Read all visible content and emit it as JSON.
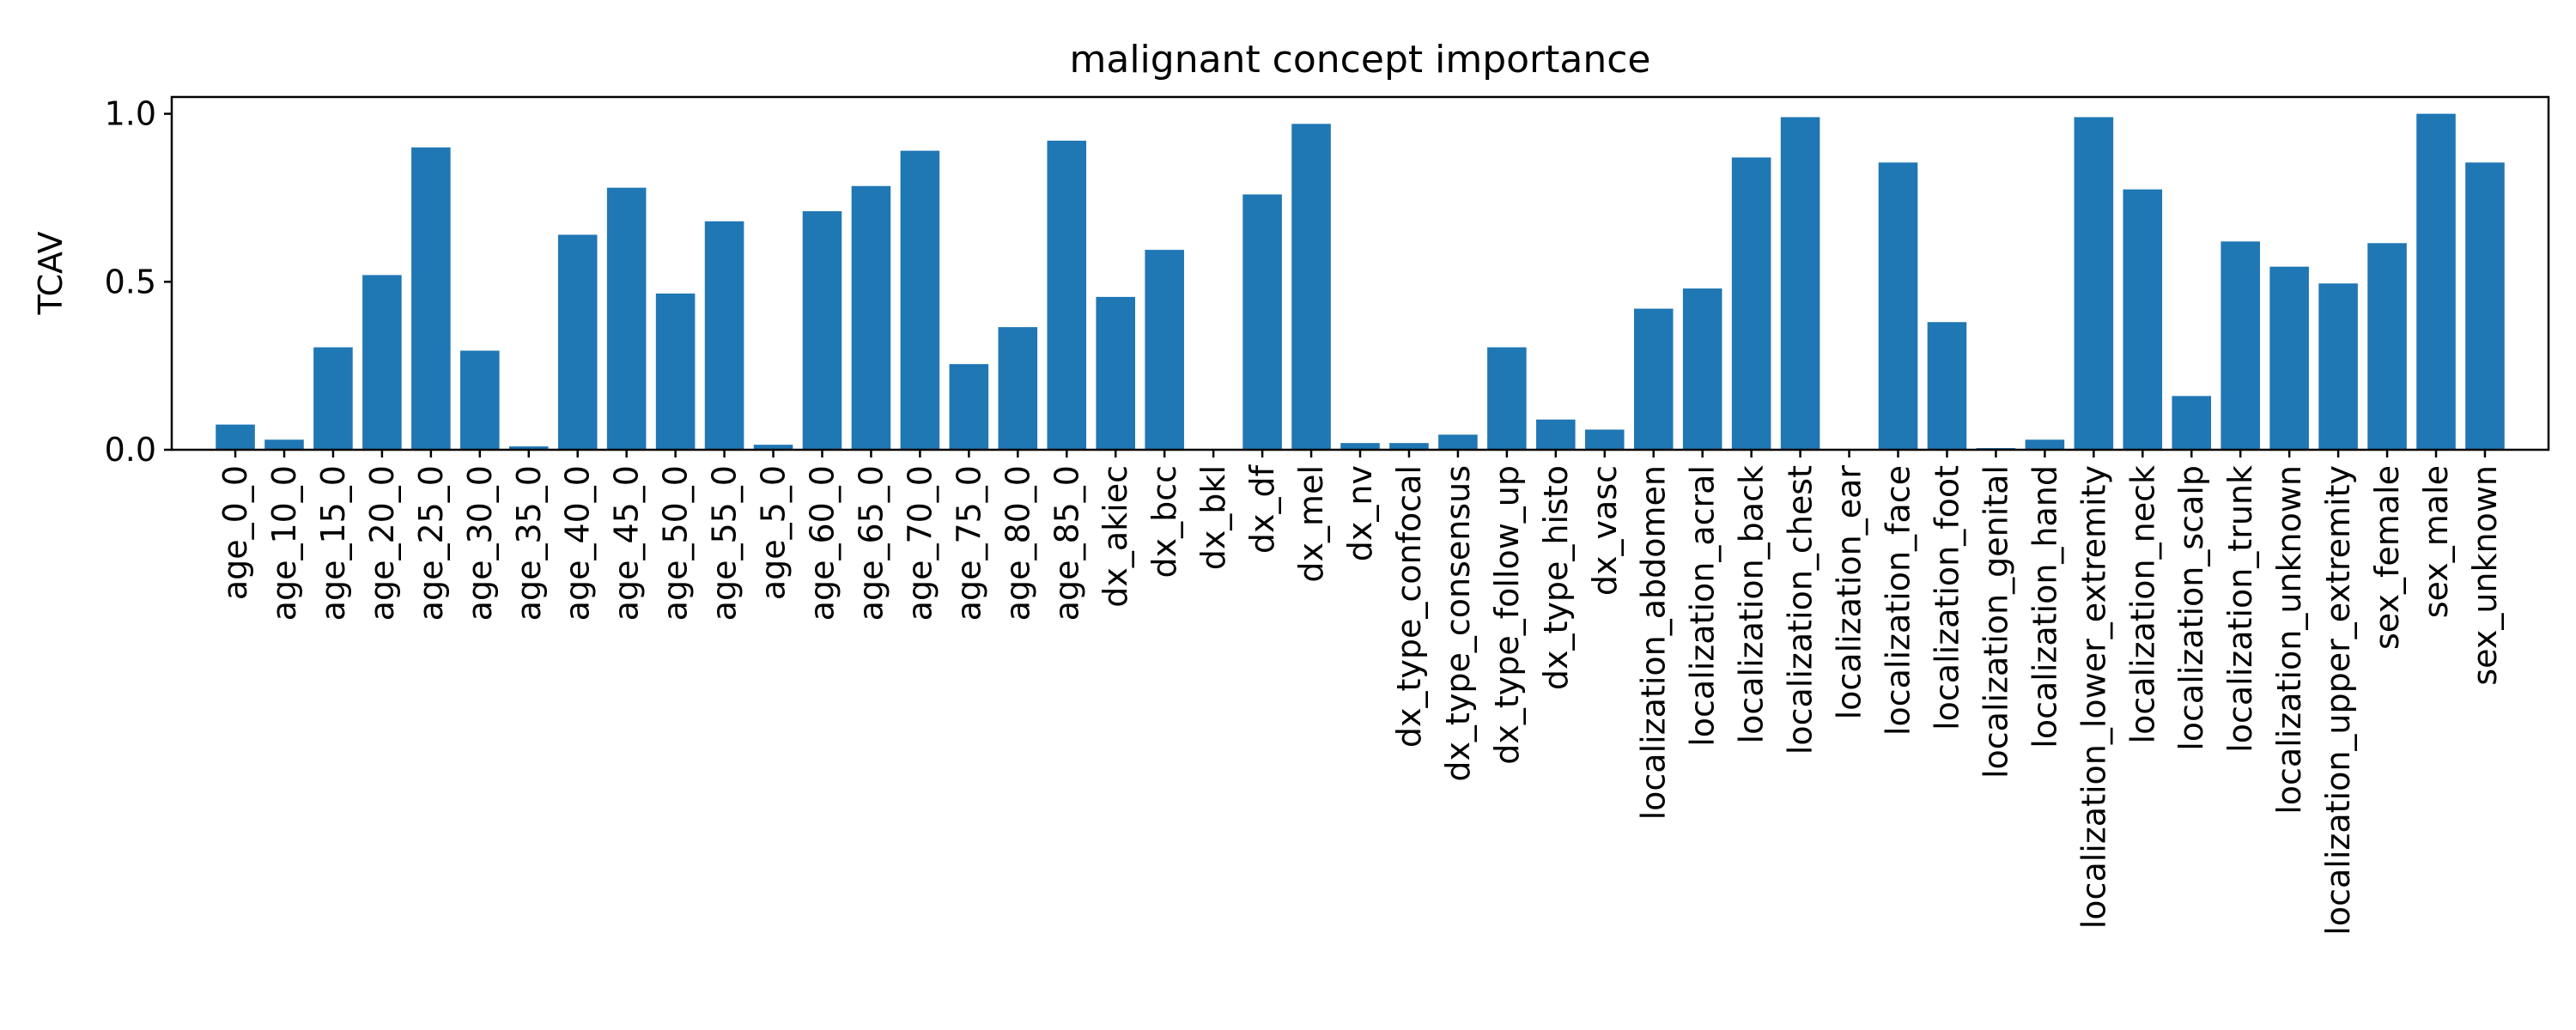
{
  "chart_data": {
    "type": "bar",
    "title": "malignant concept importance",
    "xlabel": "",
    "ylabel": "TCAV",
    "ylim": [
      0,
      1.05
    ],
    "yticks": [
      0.0,
      0.5,
      1.0
    ],
    "ytick_labels": [
      "0.0",
      "0.5",
      "1.0"
    ],
    "grid": false,
    "bar_color": "#1f77b4",
    "categories": [
      "age_0_0",
      "age_10_0",
      "age_15_0",
      "age_20_0",
      "age_25_0",
      "age_30_0",
      "age_35_0",
      "age_40_0",
      "age_45_0",
      "age_50_0",
      "age_55_0",
      "age_5_0",
      "age_60_0",
      "age_65_0",
      "age_70_0",
      "age_75_0",
      "age_80_0",
      "age_85_0",
      "dx_akiec",
      "dx_bcc",
      "dx_bkl",
      "dx_df",
      "dx_mel",
      "dx_nv",
      "dx_type_confocal",
      "dx_type_consensus",
      "dx_type_follow_up",
      "dx_type_histo",
      "dx_vasc",
      "localization_abdomen",
      "localization_acral",
      "localization_back",
      "localization_chest",
      "localization_ear",
      "localization_face",
      "localization_foot",
      "localization_genital",
      "localization_hand",
      "localization_lower_extremity",
      "localization_neck",
      "localization_scalp",
      "localization_trunk",
      "localization_unknown",
      "localization_upper_extremity",
      "sex_female",
      "sex_male",
      "sex_unknown"
    ],
    "values": [
      0.075,
      0.03,
      0.305,
      0.52,
      0.9,
      0.295,
      0.01,
      0.64,
      0.78,
      0.465,
      0.68,
      0.015,
      0.71,
      0.785,
      0.89,
      0.255,
      0.365,
      0.92,
      0.455,
      0.595,
      0.0,
      0.76,
      0.97,
      0.02,
      0.02,
      0.045,
      0.305,
      0.09,
      0.06,
      0.42,
      0.48,
      0.87,
      0.99,
      0.0,
      0.855,
      0.38,
      0.005,
      0.03,
      0.99,
      0.775,
      0.16,
      0.62,
      0.545,
      0.495,
      0.615,
      1.0,
      0.855
    ]
  }
}
